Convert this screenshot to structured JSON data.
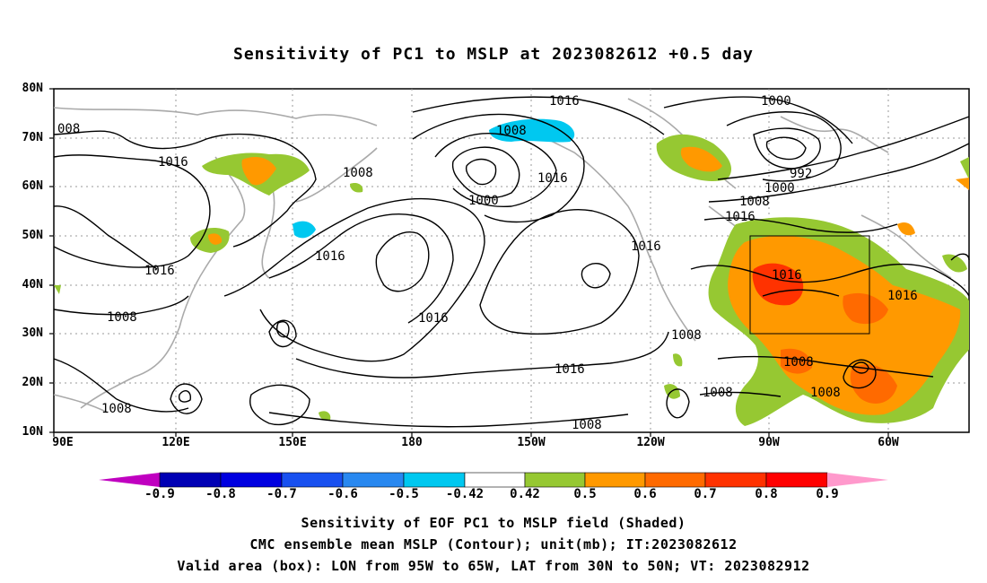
{
  "title": "Sensitivity of PC1 to MSLP at 2023082612 +0.5 day",
  "map": {
    "lat_labels": [
      "80N",
      "70N",
      "60N",
      "50N",
      "40N",
      "30N",
      "20N",
      "10N"
    ],
    "lon_labels": [
      "90E",
      "120E",
      "150E",
      "180",
      "150W",
      "120W",
      "90W",
      "60W"
    ],
    "contour_labels": [
      "1016",
      "1000",
      "1008",
      "992",
      "1000",
      "1008",
      "1016",
      "1016",
      "1008",
      "1016",
      "1000",
      "1016",
      "1016",
      "1016",
      "1016",
      "1016",
      "1008",
      "1016",
      "1008",
      "1008",
      "1016",
      "1008",
      "1008",
      "1008",
      "1008",
      "008"
    ],
    "valid_box": {
      "lon_from": "95W",
      "lon_to": "65W",
      "lat_from": "30N",
      "lat_to": "50N"
    }
  },
  "colorbar": {
    "labels": [
      "-0.9",
      "-0.8",
      "-0.7",
      "-0.6",
      "-0.5",
      "-0.42",
      "0.42",
      "0.5",
      "0.6",
      "0.7",
      "0.8",
      "0.9"
    ],
    "colors": [
      "#c000c0",
      "#0000b4",
      "#0000e0",
      "#1850f0",
      "#2888f0",
      "#00c8f0",
      "#ffffff",
      "#96c832",
      "#ff9900",
      "#ff6a00",
      "#ff3200",
      "#ff0000",
      "#ff99cc"
    ]
  },
  "captions": {
    "line1": "Sensitivity of EOF PC1 to MSLP field (Shaded)",
    "line2": "CMC ensemble mean MSLP (Contour); unit(mb); IT:2023082612",
    "line3": "Valid area (box): LON from 95W to 65W, LAT from 30N to 50N; VT: 2023082912"
  }
}
